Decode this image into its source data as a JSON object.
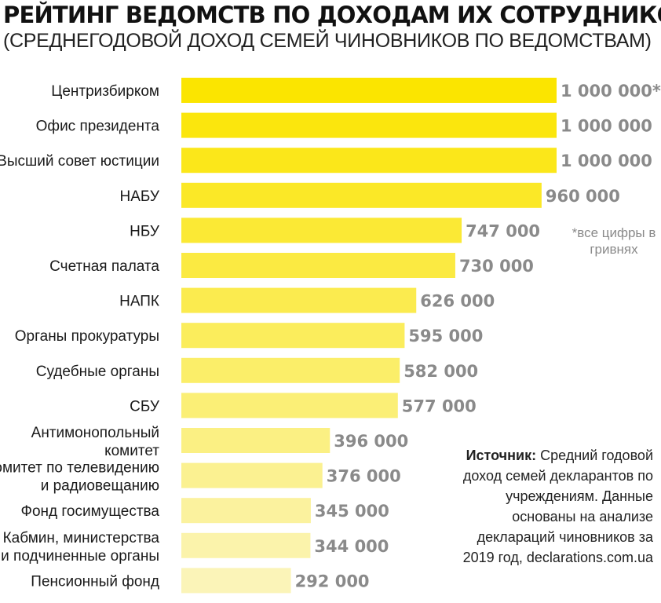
{
  "title": "РЕЙТИНГ ВЕДОМСТВ ПО ДОХОДАМ ИХ СОТРУДНИКОВ",
  "subtitle": "(СРЕДНЕГОДОВОЙ ДОХОД СЕМЕЙ ЧИНОВНИКОВ ПО ВЕДОМСТВАМ)",
  "note": "*все цифры в гривнях",
  "source": {
    "label": "Источник:",
    "text": "Средний годовой доход семей декларантов по учреждениям. Данные основаны на анализе деклараций чиновников за 2019 год, declarations.com.ua"
  },
  "chart_data": {
    "type": "bar",
    "orientation": "horizontal",
    "categories": [
      [
        "Центризбирком"
      ],
      [
        "Офис президента"
      ],
      [
        "Высший совет юстиции"
      ],
      [
        "НАБУ"
      ],
      [
        "НБУ"
      ],
      [
        "Счетная палата"
      ],
      [
        "НАПК"
      ],
      [
        "Органы прокуратуры"
      ],
      [
        "Судебные органы"
      ],
      [
        "СБУ"
      ],
      [
        "Антимонопольный",
        "комитет"
      ],
      [
        "Госкомитет по телевидению",
        "и радиовещанию"
      ],
      [
        "Фонд госимущества"
      ],
      [
        "Кабмин, министерства",
        "и подчиненные органы"
      ],
      [
        "Пенсионный фонд"
      ]
    ],
    "values": [
      1000000,
      1000000,
      1000000,
      960000,
      747000,
      730000,
      626000,
      595000,
      582000,
      577000,
      396000,
      376000,
      345000,
      344000,
      292000
    ],
    "value_labels": [
      "1 000 000*",
      "1 000 000",
      "1 000 000",
      "960 000",
      "747 000",
      "730 000",
      "626 000",
      "595 000",
      "582 000",
      "577 000",
      "396 000",
      "376 000",
      "345 000",
      "344 000",
      "292 000"
    ],
    "xlim": [
      0,
      1000000
    ],
    "grid": false,
    "legend": "none",
    "colors": {
      "bar_strong": "#fbe500",
      "bar_light": "#fbf4b8",
      "value_text": "#8a8a8a"
    }
  }
}
